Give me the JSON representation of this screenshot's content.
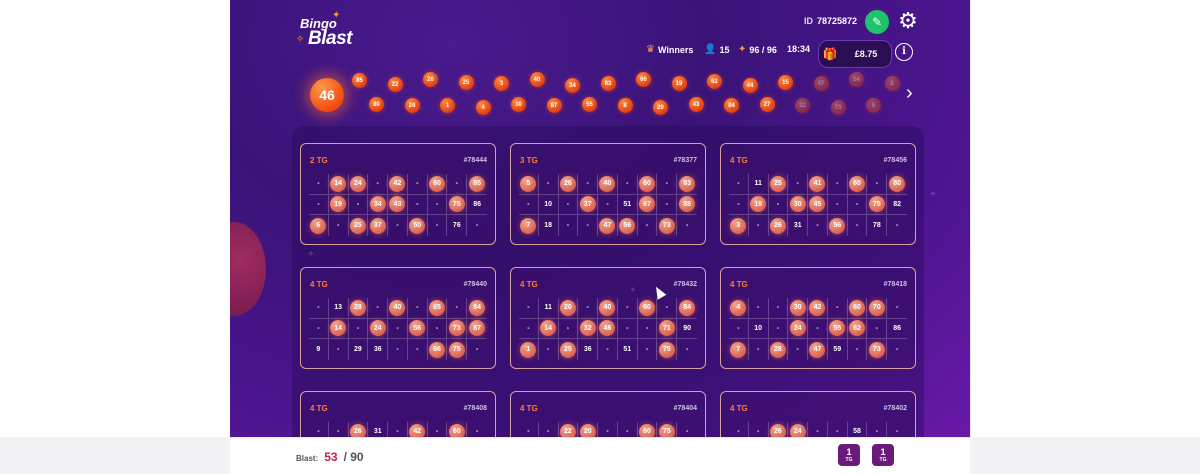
{
  "header": {
    "logo_top": "Bingo",
    "logo_bottom": "Blast",
    "id_label": "ID",
    "id_value": "78725872",
    "winners_label": "Winners",
    "players": "15",
    "tickets": "96 / 96",
    "timer": "18:34",
    "jackpot": "£8.75"
  },
  "current_ball": "46",
  "called_balls_top": [
    "85",
    "22",
    "26",
    "25",
    "3",
    "40",
    "34",
    "83",
    "66",
    "19",
    "62",
    "44",
    "15",
    "47",
    "54",
    "2"
  ],
  "called_balls_bottom": [
    "80",
    "24",
    "1",
    "4",
    "30",
    "87",
    "55",
    "8",
    "20",
    "43",
    "84",
    "27",
    "32",
    "73",
    "5"
  ],
  "cards": [
    {
      "tg": "2 TG",
      "id": "#78444",
      "rows": [
        [
          "-",
          "14",
          "24",
          "-",
          "42",
          "-",
          "60",
          "-",
          "85"
        ],
        [
          "-",
          "19",
          "-",
          "34",
          "43",
          "-",
          "-",
          "75",
          "86"
        ],
        [
          "6",
          "-",
          "25",
          "37",
          "-",
          "50",
          "-",
          "76",
          "-"
        ]
      ],
      "marked": [
        "14",
        "24",
        "42",
        "60",
        "85",
        "19",
        "34",
        "43",
        "75",
        "6",
        "25",
        "37",
        "50"
      ]
    },
    {
      "tg": "3 TG",
      "id": "#78377",
      "rows": [
        [
          "5",
          "-",
          "26",
          "-",
          "40",
          "-",
          "60",
          "-",
          "83"
        ],
        [
          "-",
          "10",
          "-",
          "37",
          "-",
          "51",
          "67",
          "-",
          "88"
        ],
        [
          "7",
          "18",
          "-",
          "-",
          "47",
          "56",
          "-",
          "73",
          "-"
        ]
      ],
      "marked": [
        "5",
        "26",
        "40",
        "60",
        "83",
        "37",
        "67",
        "88",
        "7",
        "47",
        "56",
        "73"
      ]
    },
    {
      "tg": "4 TG",
      "id": "#78456",
      "rows": [
        [
          "-",
          "11",
          "25",
          "-",
          "41",
          "-",
          "60",
          "-",
          "80"
        ],
        [
          "-",
          "19",
          "-",
          "30",
          "45",
          "-",
          "-",
          "75",
          "82"
        ],
        [
          "3",
          "-",
          "26",
          "31",
          "-",
          "56",
          "-",
          "78",
          "-"
        ]
      ],
      "marked": [
        "25",
        "41",
        "60",
        "80",
        "19",
        "30",
        "45",
        "75",
        "3",
        "26",
        "56"
      ]
    },
    {
      "tg": "4 TG",
      "id": "#78440",
      "rows": [
        [
          "-",
          "13",
          "28",
          "-",
          "40",
          "-",
          "65",
          "-",
          "84"
        ],
        [
          "-",
          "14",
          "-",
          "24",
          "-",
          "56",
          "-",
          "73",
          "87"
        ],
        [
          "9",
          "-",
          "29",
          "36",
          "-",
          "-",
          "66",
          "75",
          "-"
        ]
      ],
      "marked": [
        "28",
        "40",
        "65",
        "84",
        "14",
        "24",
        "56",
        "73",
        "87",
        "66",
        "75"
      ]
    },
    {
      "tg": "4 TG",
      "id": "#78432",
      "rows": [
        [
          "-",
          "11",
          "20",
          "-",
          "40",
          "-",
          "60",
          "-",
          "84"
        ],
        [
          "-",
          "14",
          "-",
          "32",
          "46",
          "-",
          "-",
          "71",
          "90"
        ],
        [
          "1",
          "-",
          "25",
          "36",
          "-",
          "51",
          "-",
          "75",
          "-"
        ]
      ],
      "marked": [
        "20",
        "40",
        "60",
        "84",
        "14",
        "32",
        "46",
        "71",
        "1",
        "25",
        "75"
      ]
    },
    {
      "tg": "4 TG",
      "id": "#78418",
      "rows": [
        [
          "4",
          "-",
          "-",
          "30",
          "42",
          "-",
          "60",
          "70",
          "-"
        ],
        [
          "-",
          "10",
          "-",
          "24",
          "-",
          "55",
          "62",
          "-",
          "86"
        ],
        [
          "7",
          "-",
          "28",
          "-",
          "47",
          "59",
          "-",
          "73",
          "-"
        ]
      ],
      "marked": [
        "4",
        "30",
        "42",
        "60",
        "70",
        "24",
        "55",
        "62",
        "7",
        "28",
        "47",
        "73"
      ]
    },
    {
      "tg": "4 TG",
      "id": "#78408",
      "rows": [
        [
          "-",
          "-",
          "26",
          "31",
          "-",
          "42",
          "-",
          "60",
          "-"
        ]
      ],
      "marked": [
        "26",
        "42",
        "60"
      ]
    },
    {
      "tg": "4 TG",
      "id": "#78404",
      "rows": [
        [
          "-",
          "-",
          "22",
          "20",
          "-",
          "-",
          "60",
          "75",
          "-"
        ]
      ],
      "marked": [
        "22",
        "20",
        "60",
        "75"
      ]
    },
    {
      "tg": "4 TG",
      "id": "#78402",
      "rows": [
        [
          "-",
          "-",
          "26",
          "24",
          "-",
          "-",
          "58",
          "-",
          "-"
        ]
      ],
      "marked": [
        "26",
        "24"
      ]
    }
  ],
  "footer": {
    "blast_label": "Blast:",
    "blast_count": "53",
    "blast_total": "/ 90",
    "btn1_top": "1",
    "btn1_bottom": "TG",
    "btn2_top": "1",
    "btn2_bottom": "TG"
  }
}
